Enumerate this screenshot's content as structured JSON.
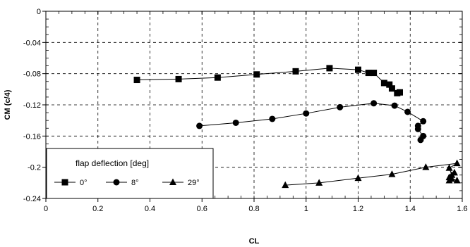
{
  "chart_data": {
    "type": "line",
    "xlabel": "CL",
    "ylabel": "CM (c/4)",
    "xlim": [
      0,
      1.6
    ],
    "ylim": [
      -0.24,
      0
    ],
    "x_ticks": [
      "0",
      "0.2",
      "0.4",
      "0.6",
      "0.8",
      "1",
      "1.2",
      "1.4",
      "1.6"
    ],
    "y_ticks": [
      "0",
      "-0.04",
      "-0.08",
      "-0.12",
      "-0.16",
      "-0.2",
      "-0.24"
    ],
    "x_tick_values": [
      0,
      0.2,
      0.4,
      0.6,
      0.8,
      1.0,
      1.2,
      1.4,
      1.6
    ],
    "y_tick_values": [
      0,
      -0.04,
      -0.08,
      -0.12,
      -0.16,
      -0.2,
      -0.24
    ],
    "grid": "dashed",
    "legend": {
      "title": "flap deflection [deg]",
      "position": "bottom-left"
    },
    "series": [
      {
        "name": "0°",
        "marker": "square",
        "x": [
          0.35,
          0.51,
          0.66,
          0.81,
          0.96,
          1.09,
          1.2,
          1.24,
          1.26,
          1.3,
          1.32,
          1.33,
          1.35,
          1.36
        ],
        "y": [
          -0.088,
          -0.087,
          -0.085,
          -0.081,
          -0.077,
          -0.073,
          -0.075,
          -0.079,
          -0.079,
          -0.092,
          -0.094,
          -0.099,
          -0.105,
          -0.104
        ]
      },
      {
        "name": "8°",
        "marker": "circle",
        "x": [
          0.59,
          0.73,
          0.87,
          1.0,
          1.13,
          1.26,
          1.34,
          1.39,
          1.45,
          1.43,
          1.43,
          1.45,
          1.44
        ],
        "y": [
          -0.147,
          -0.143,
          -0.138,
          -0.131,
          -0.123,
          -0.118,
          -0.121,
          -0.129,
          -0.141,
          -0.147,
          -0.151,
          -0.16,
          -0.165
        ]
      },
      {
        "name": "29°",
        "marker": "triangle",
        "x": [
          0.92,
          1.05,
          1.2,
          1.33,
          1.46,
          1.58,
          1.55,
          1.56,
          1.56,
          1.58,
          1.55,
          1.57,
          1.55
        ],
        "y": [
          -0.223,
          -0.22,
          -0.214,
          -0.209,
          -0.2,
          -0.195,
          -0.201,
          -0.21,
          -0.215,
          -0.217,
          -0.213,
          -0.207,
          -0.217
        ]
      }
    ]
  }
}
